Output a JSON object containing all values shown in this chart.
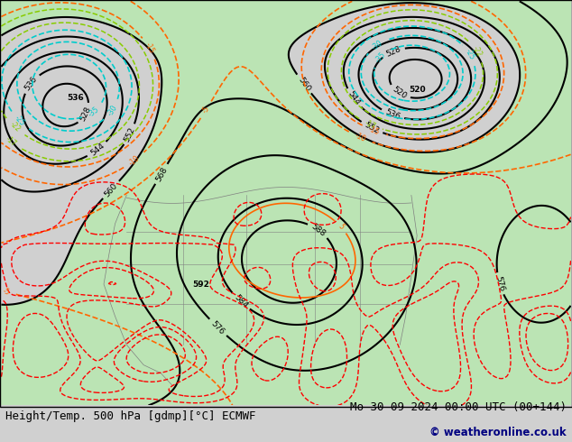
{
  "title_left": "Height/Temp. 500 hPa [gdmp][°C] ECMWF",
  "title_right": "Mo 30-09-2024 00:00 UTC (00+144)",
  "copyright": "© weatheronline.co.uk",
  "background_color": "#d0d0d0",
  "green_fill_color": "#b8e8b0",
  "title_fontsize": 9,
  "copyright_color": "#000080",
  "z500_color": "#000000",
  "temp_warm_color": "#ff6600",
  "temp_cold_color": "#ff0000",
  "temp_cyan_color": "#00cccc",
  "temp_lime_color": "#88cc00",
  "gray_color": "#808080"
}
